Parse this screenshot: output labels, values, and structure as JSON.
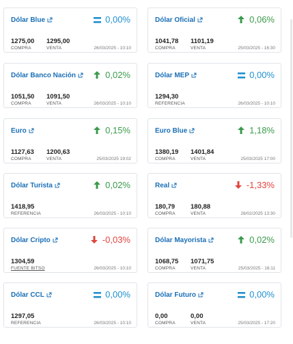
{
  "labels": {
    "compra": "COMPRA",
    "venta": "VENTA",
    "referencia": "REFERENCIA",
    "fuente_bitso": "FUENTE BITSO"
  },
  "cards": [
    {
      "title": "Dólar Blue",
      "trend": "eq",
      "variation": "0,00%",
      "compra": "1275,00",
      "venta": "1295,00",
      "date": "26/03/2025 - 10:10"
    },
    {
      "title": "Dólar Oficial",
      "trend": "up",
      "variation": "0,06%",
      "compra": "1041,78",
      "venta": "1101,19",
      "date": "25/03/2025 - 16:30"
    },
    {
      "title": "Dólar Banco Nación",
      "trend": "up",
      "variation": "0,02%",
      "compra": "1051,50",
      "venta": "1091,50",
      "date": "26/03/2025 - 10:10"
    },
    {
      "title": "Dólar MEP",
      "trend": "eq",
      "variation": "0,00%",
      "referencia": "1294,30",
      "date": "26/03/2025 - 10:10"
    },
    {
      "title": "Euro",
      "trend": "up",
      "variation": "0,15%",
      "compra": "1127,63",
      "venta": "1200,63",
      "date": "25/03/2025 19:02"
    },
    {
      "title": "Euro Blue",
      "trend": "up",
      "variation": "1,18%",
      "compra": "1380,19",
      "venta": "1401,84",
      "date": "25/03/2025 17:00"
    },
    {
      "title": "Dólar Turista",
      "trend": "up",
      "variation": "0,02%",
      "referencia": "1418,95",
      "date": "26/03/2025 - 10:10"
    },
    {
      "title": "Real",
      "trend": "down",
      "variation": "-1,33%",
      "compra": "180,79",
      "venta": "180,88",
      "date": "28/02/2025 13:30"
    },
    {
      "title": "Dólar Cripto",
      "trend": "down",
      "variation": "-0,03%",
      "fuente": "1304,59",
      "date": "26/03/2025 - 10:10"
    },
    {
      "title": "Dólar Mayorista",
      "trend": "up",
      "variation": "0,02%",
      "compra": "1068,75",
      "venta": "1071,75",
      "date": "25/03/2025 - 16:11"
    },
    {
      "title": "Dólar CCL",
      "trend": "eq",
      "variation": "0,00%",
      "referencia": "1297,05",
      "date": "26/03/2025 - 10:10"
    },
    {
      "title": "Dólar Futuro",
      "trend": "eq",
      "variation": "0,00%",
      "compra": "0,00",
      "venta": "0,00",
      "date": "25/03/2025 - 17:20"
    }
  ],
  "colors": {
    "title": "#1a6fb5",
    "up": "#3a9a4b",
    "down": "#e0443f",
    "equal": "#1f8fcf",
    "border": "#dfe3e8"
  },
  "icons": {
    "title_link": "external-link-icon",
    "up": "arrow-up-icon",
    "down": "arrow-down-icon",
    "eq": "equals-icon"
  }
}
